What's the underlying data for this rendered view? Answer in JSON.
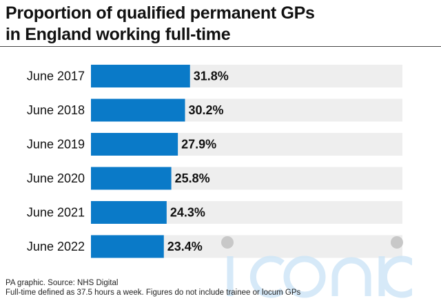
{
  "title_line1": "Proportion of qualified permanent GPs",
  "title_line2": "in England working full-time",
  "chart_data": {
    "type": "bar",
    "orientation": "horizontal",
    "categories": [
      "June 2017",
      "June 2018",
      "June 2019",
      "June 2020",
      "June 2021",
      "June 2022"
    ],
    "values": [
      31.8,
      30.2,
      27.9,
      25.8,
      24.3,
      23.4
    ],
    "value_labels": [
      "31.8%",
      "30.2%",
      "27.9%",
      "25.8%",
      "24.3%",
      "23.4%"
    ],
    "xlim": [
      0,
      100
    ],
    "bar_color": "#0a7ac8",
    "track_color": "#eeeeee",
    "grid": false,
    "legend": "none"
  },
  "footer": {
    "source": "PA graphic. Source: NHS Digital",
    "note": "Full-time defined as 37.5 hours a week. Figures do not include trainee or locum GPs"
  },
  "watermark_text": "iconic"
}
